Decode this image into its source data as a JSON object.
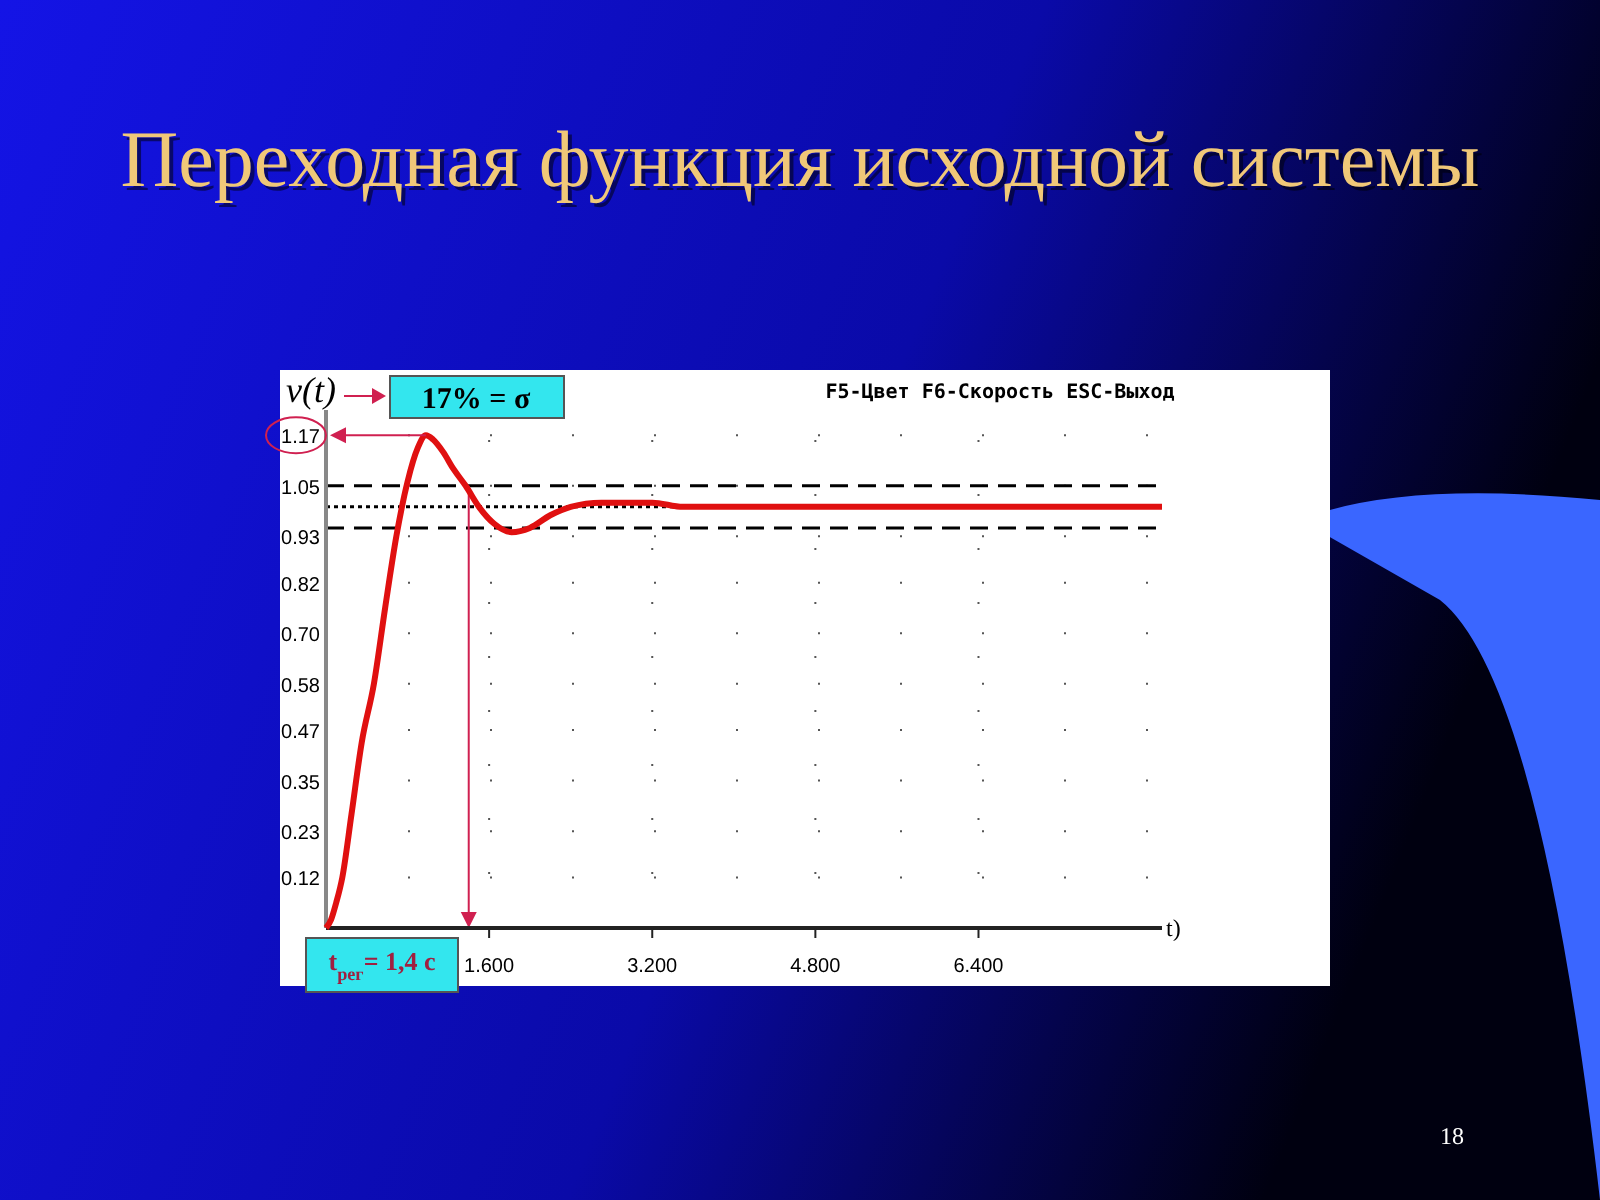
{
  "chart_data": {
    "type": "line",
    "title": "Переходная функция исходной системы",
    "subtitle": "F5-Цвет F6-Скорость ESC-Выход",
    "xlabel": "t)",
    "ylabel": "v(t)",
    "x": [
      0,
      0.05,
      0.1,
      0.16,
      0.25,
      0.35,
      0.47,
      0.58,
      0.69,
      0.8,
      0.9,
      0.98,
      1.05,
      1.15,
      1.25,
      1.37,
      1.5,
      1.65,
      1.82,
      2.0,
      2.2,
      2.4,
      2.7,
      3.0,
      3.2,
      3.5,
      4.0,
      4.5,
      5.0,
      5.5,
      6.0,
      6.5,
      7.0,
      7.5,
      8.2
    ],
    "series": [
      {
        "color": "#e01010",
        "values": [
          0,
          0.02,
          0.06,
          0.12,
          0.27,
          0.44,
          0.58,
          0.76,
          0.93,
          1.06,
          1.14,
          1.17,
          1.16,
          1.13,
          1.09,
          1.05,
          1.0,
          0.96,
          0.94,
          0.95,
          0.98,
          1.0,
          1.01,
          1.01,
          1.01,
          1.0,
          1.0,
          1.0,
          1.0,
          1.0,
          1.0,
          1.0,
          1.0,
          1.0,
          1.0
        ]
      }
    ],
    "xlim": [
      0,
      8.2
    ],
    "ylim": [
      0,
      1.23
    ],
    "xticks": [
      {
        "value": 1.6,
        "label": "1.600"
      },
      {
        "value": 3.2,
        "label": "3.200"
      },
      {
        "value": 4.8,
        "label": "4.800"
      },
      {
        "value": 6.4,
        "label": "6.400"
      }
    ],
    "yticks": [
      0.12,
      0.23,
      0.35,
      0.47,
      0.58,
      {
        "value": 0.7,
        "label": "0.70"
      },
      0.82,
      0.93,
      1.05,
      1.17
    ],
    "ref_lines": [
      {
        "axis": "y",
        "value": 1.05,
        "line_style": "dashed",
        "color": "#000000"
      },
      {
        "axis": "y",
        "value": 1.0,
        "line_style": "dotted",
        "color": "#000000"
      },
      {
        "axis": "y",
        "value": 0.95,
        "line_style": "dashed",
        "color": "#000000"
      },
      {
        "axis": "x",
        "value": 1.4,
        "label": "t$_{рег}$= 1,4 с",
        "line_style": "solid",
        "color": "#d02050"
      }
    ],
    "annotations": [
      "17% = σ",
      "18"
    ],
    "grid": true,
    "marker": "none",
    "line_style": "solid"
  }
}
